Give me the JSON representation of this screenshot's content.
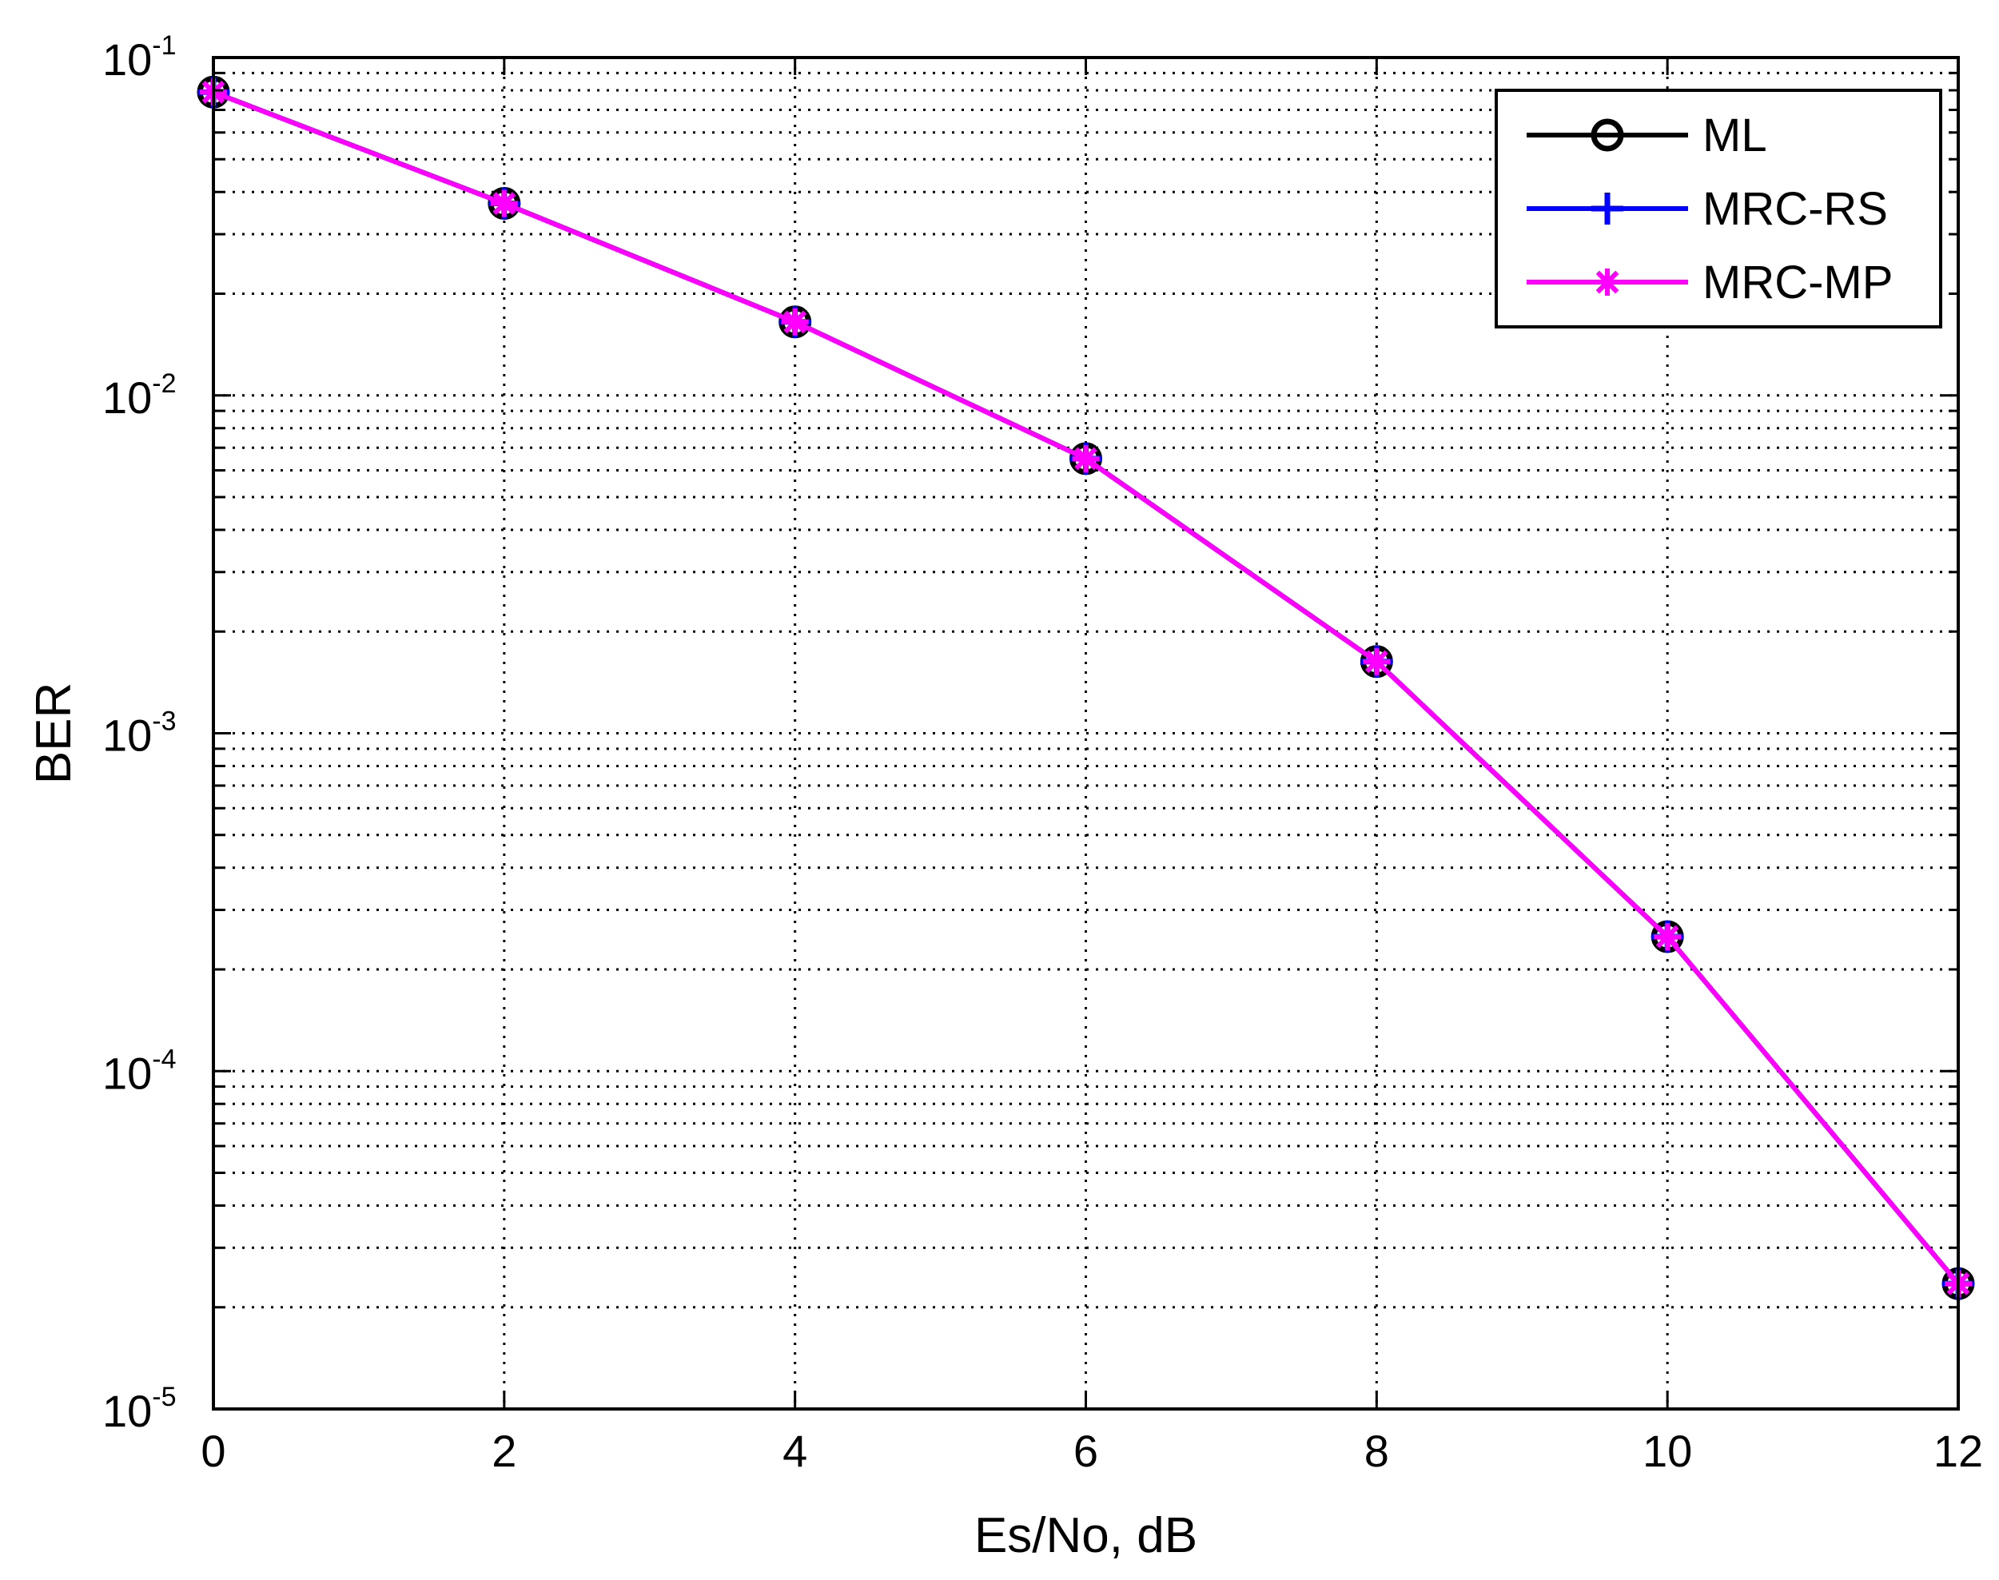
{
  "chart_data": {
    "type": "line",
    "xlabel": "Es/No, dB",
    "ylabel": "BER",
    "xlim": [
      0,
      12
    ],
    "ylim": [
      1e-05,
      0.1
    ],
    "yscale": "log",
    "grid": true,
    "legend_position": "top-right",
    "x_ticks": [
      "0",
      "2",
      "4",
      "6",
      "8",
      "10",
      "12"
    ],
    "y_ticks": [
      {
        "base": "10",
        "exp": "-1"
      },
      {
        "base": "10",
        "exp": "-2"
      },
      {
        "base": "10",
        "exp": "-3"
      },
      {
        "base": "10",
        "exp": "-4"
      },
      {
        "base": "10",
        "exp": "-5"
      }
    ],
    "x": [
      0,
      2,
      4,
      6,
      8,
      10,
      12
    ],
    "series": [
      {
        "name": "ML",
        "color": "#000000",
        "marker": "circle",
        "values": [
          0.079,
          0.037,
          0.0165,
          0.0065,
          0.00163,
          0.00025,
          2.35e-05
        ]
      },
      {
        "name": "MRC-RS",
        "color": "#0000ff",
        "marker": "plus",
        "values": [
          0.079,
          0.037,
          0.0165,
          0.0065,
          0.00163,
          0.00025,
          2.35e-05
        ]
      },
      {
        "name": "MRC-MP",
        "color": "#ff00ff",
        "marker": "asterisk",
        "values": [
          0.079,
          0.037,
          0.0165,
          0.0065,
          0.00163,
          0.00025,
          2.35e-05
        ]
      }
    ]
  }
}
